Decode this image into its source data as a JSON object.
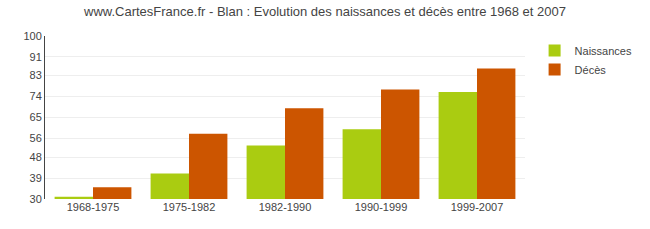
{
  "chart_data": {
    "type": "bar",
    "title": "www.CartesFrance.fr - Blan : Evolution des naissances et décès entre 1968 et 2007",
    "categories": [
      "1968-1975",
      "1975-1982",
      "1982-1990",
      "1990-1999",
      "1999-2007"
    ],
    "series": [
      {
        "name": "Naissances",
        "color": "#aacc11",
        "values": [
          31,
          41,
          53,
          60,
          76
        ]
      },
      {
        "name": "Décès",
        "color": "#cc5500",
        "values": [
          35,
          58,
          69,
          77,
          86
        ]
      }
    ],
    "ylim": [
      30,
      100
    ],
    "yticks": [
      30,
      39,
      48,
      56,
      65,
      74,
      83,
      91,
      100
    ],
    "grid": true,
    "legend": "upper right"
  }
}
